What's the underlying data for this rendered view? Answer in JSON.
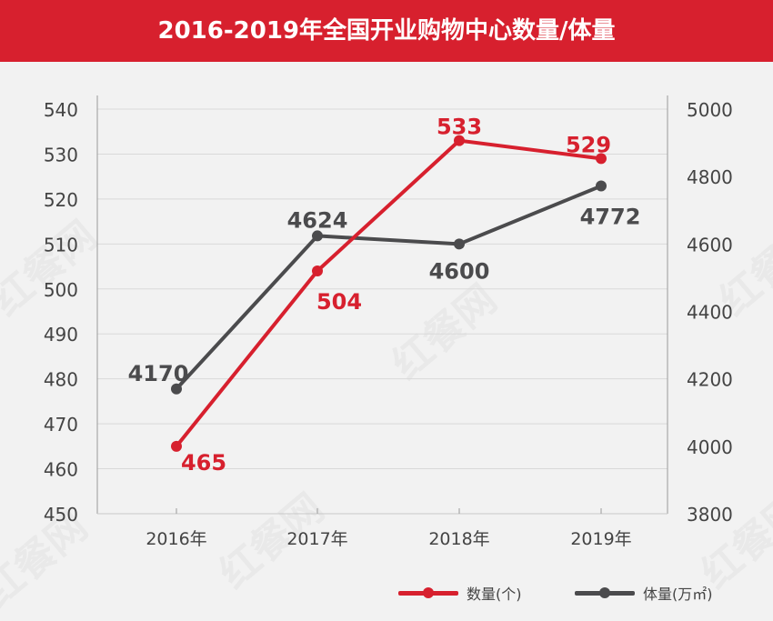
{
  "header": {
    "title": "2016-2019年全国开业购物中心数量/体量"
  },
  "colors": {
    "header_bg": "#d7202e",
    "count_series": "#d7202e",
    "area_series": "#4b4b4d",
    "grid": "#d9d9d9",
    "axis_text": "#444444"
  },
  "watermark": {
    "text": "红餐网"
  },
  "legend": {
    "items": [
      {
        "label": "数量(个)",
        "color": "#d7202e"
      },
      {
        "label": "体量(万㎡)",
        "color": "#4b4b4d"
      }
    ]
  },
  "chart_data": {
    "type": "line",
    "title": "2016-2019年全国开业购物中心数量/体量",
    "categories": [
      "2016年",
      "2017年",
      "2018年",
      "2019年"
    ],
    "series": [
      {
        "name": "数量(个)",
        "axis": "left",
        "values": [
          465,
          504,
          533,
          529
        ],
        "labels": [
          "465",
          "504",
          "533",
          "529"
        ]
      },
      {
        "name": "体量(万㎡)",
        "axis": "right",
        "values": [
          4170,
          4624,
          4600,
          4772
        ],
        "labels": [
          "4170",
          "4624",
          "4600",
          "4772"
        ]
      }
    ],
    "y_left": {
      "range": [
        450,
        540
      ],
      "ticks": [
        "540",
        "530",
        "520",
        "510",
        "500",
        "490",
        "480",
        "470",
        "460",
        "450"
      ]
    },
    "y_right": {
      "range": [
        3800,
        5000
      ],
      "ticks": [
        "5000",
        "4800",
        "4600",
        "4400",
        "4200",
        "4000",
        "3800"
      ]
    },
    "grid": true,
    "legend_position": "bottom-right"
  }
}
